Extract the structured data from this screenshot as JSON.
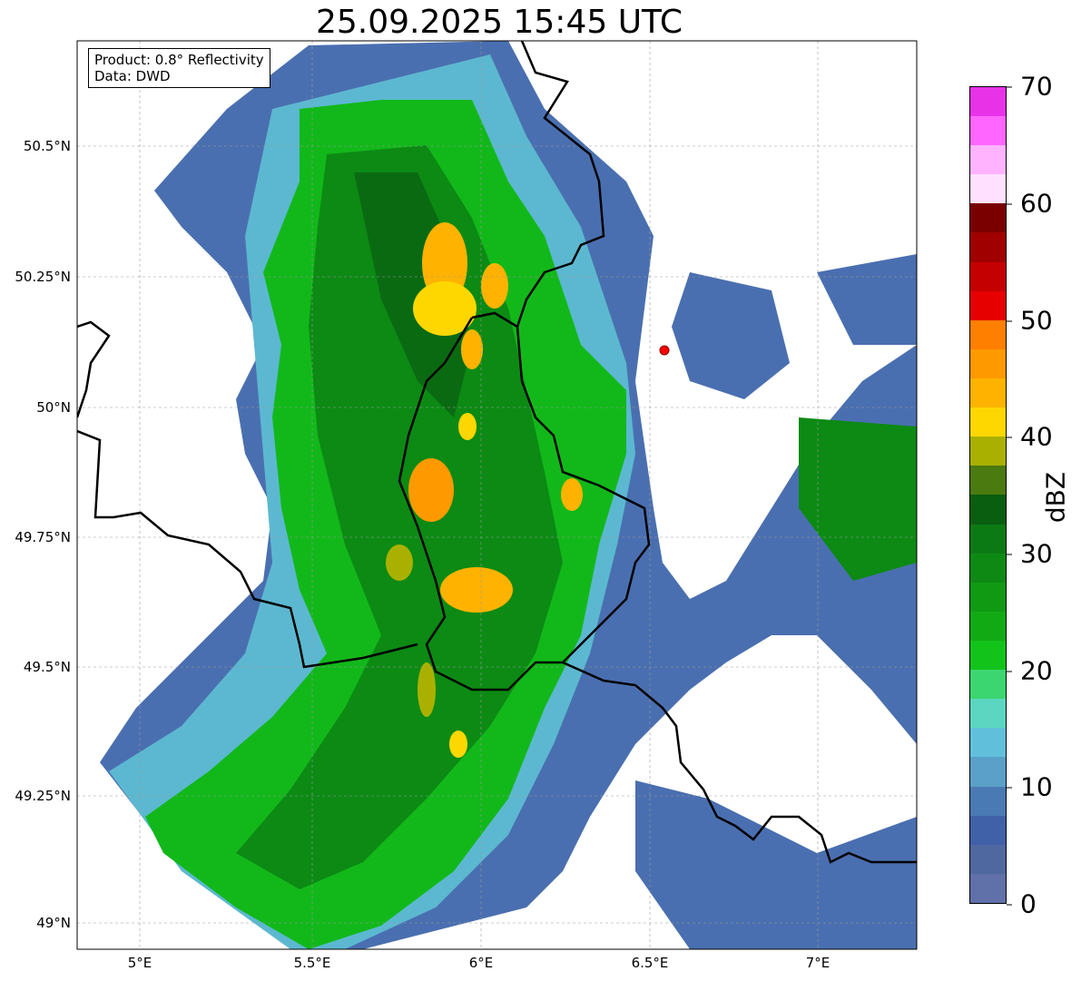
{
  "title": "25.09.2025 15:45 UTC",
  "info_box": {
    "product": "Product: 0.8° Reflectivity",
    "data": "Data: DWD"
  },
  "x_ticks": [
    "5°E",
    "5.5°E",
    "6°E",
    "6.5°E",
    "7°E"
  ],
  "y_ticks": [
    "50.5°N",
    "50.25°N",
    "50°N",
    "49.75°N",
    "49.5°N",
    "49.25°N",
    "49°N"
  ],
  "colorbar": {
    "label": "dBZ",
    "ticks": [
      "0",
      "10",
      "20",
      "30",
      "40",
      "50",
      "60",
      "70"
    ],
    "colors": [
      "#6070a8",
      "#5068a0",
      "#4060a8",
      "#4a7ab4",
      "#5aa0c8",
      "#60c0dc",
      "#5cd6c0",
      "#3cd670",
      "#12c41a",
      "#12aa14",
      "#109a14",
      "#0e8a14",
      "#0c7a14",
      "#0a5e10",
      "#4b7a10",
      "#aab000",
      "#ffd700",
      "#ffb300",
      "#ff9900",
      "#ff7f00",
      "#e60000",
      "#c40000",
      "#a00000",
      "#7a0000",
      "#ffe0ff",
      "#ffb3ff",
      "#ff66ff",
      "#e832e8"
    ]
  },
  "marker_color": "#ff0000"
}
